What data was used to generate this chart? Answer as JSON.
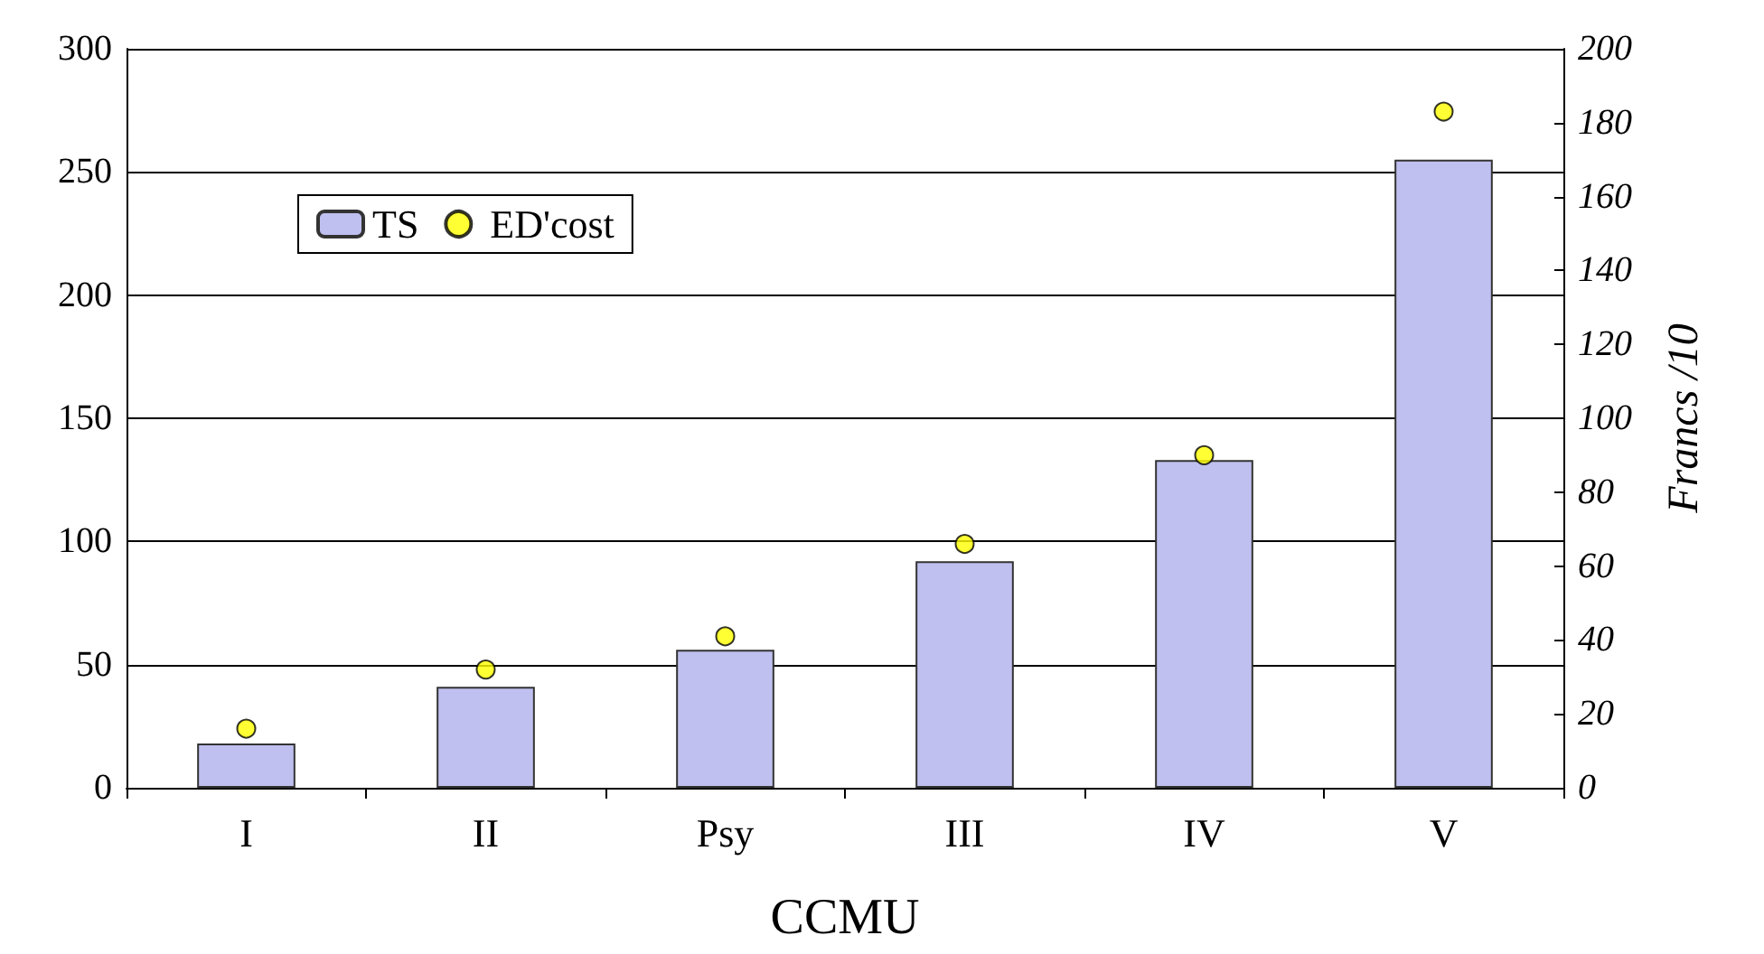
{
  "chart_data": {
    "type": "bar",
    "xlabel": "CCMU",
    "y2label": "Francs /10",
    "categories": [
      "I",
      "II",
      "Psy",
      "III",
      "IV",
      "V"
    ],
    "series": [
      {
        "name": "TS",
        "color": "#bfc0ef",
        "values": [
          18,
          41,
          56,
          92,
          133,
          255
        ]
      },
      {
        "name": "ED'cost",
        "type": "scatter",
        "axis": "y2",
        "color": "#ffff00",
        "marker": "circle",
        "values": [
          16,
          32,
          41,
          66,
          90,
          183
        ]
      }
    ],
    "ylim": [
      0,
      300
    ],
    "yticks": [
      0,
      50,
      100,
      150,
      200,
      250,
      300
    ],
    "y2lim": [
      0,
      200
    ],
    "y2ticks": [
      0,
      20,
      40,
      60,
      80,
      100,
      120,
      140,
      160,
      180,
      200
    ],
    "grid": "y",
    "legend": "top left"
  }
}
